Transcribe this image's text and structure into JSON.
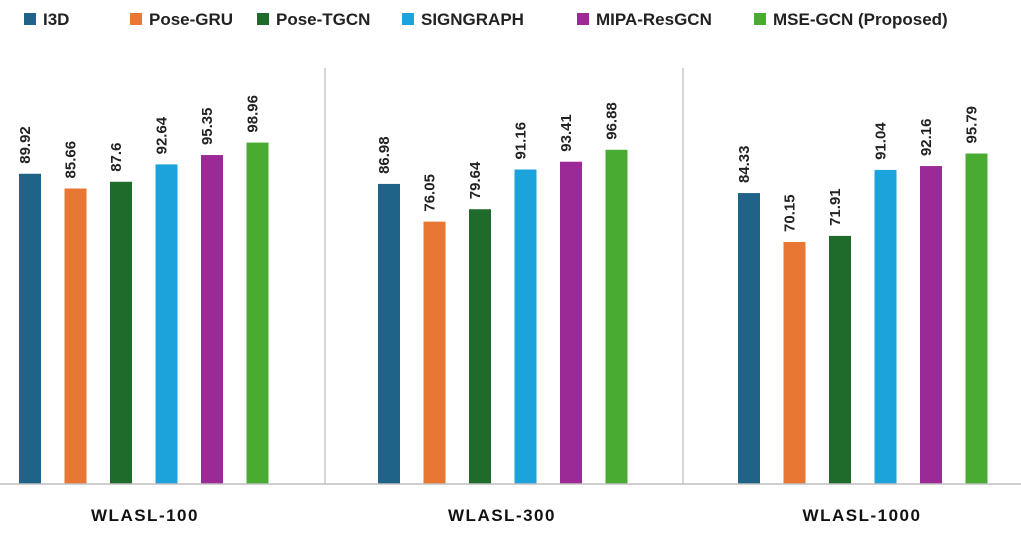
{
  "chart_data": {
    "type": "bar",
    "categories": [
      "WLASL-100",
      "WLASL-300",
      "WLASL-1000"
    ],
    "series": [
      {
        "name": "I3D",
        "color": "#1f6388",
        "values": [
          89.92,
          86.98,
          84.33
        ],
        "labels": [
          "89.92",
          "86.98",
          "84.33"
        ]
      },
      {
        "name": "Pose-GRU",
        "color": "#e87734",
        "values": [
          85.66,
          76.05,
          70.15
        ],
        "labels": [
          "85.66",
          "76.05",
          "70.15"
        ]
      },
      {
        "name": "Pose-TGCN",
        "color": "#1e6b2c",
        "values": [
          87.6,
          79.64,
          71.91
        ],
        "labels": [
          "87.6",
          "79.64",
          "71.91"
        ]
      },
      {
        "name": "SIGNGRAPH",
        "color": "#1ca3dc",
        "values": [
          92.64,
          91.16,
          91.04
        ],
        "labels": [
          "92.64",
          "91.16",
          "91.04"
        ]
      },
      {
        "name": "MIPA-ResGCN",
        "color": "#9b2a97",
        "values": [
          95.35,
          93.41,
          92.16
        ],
        "labels": [
          "95.35",
          "93.41",
          "92.16"
        ]
      },
      {
        "name": "MSE-GCN (Proposed)",
        "color": "#4aab32",
        "values": [
          98.96,
          96.88,
          95.79
        ],
        "labels": [
          "98.96",
          "96.88",
          "95.79"
        ]
      }
    ],
    "legend_position": "top",
    "grid": false,
    "data_labels": true,
    "group_separators": true,
    "title": "",
    "xlabel": "",
    "ylabel": ""
  }
}
